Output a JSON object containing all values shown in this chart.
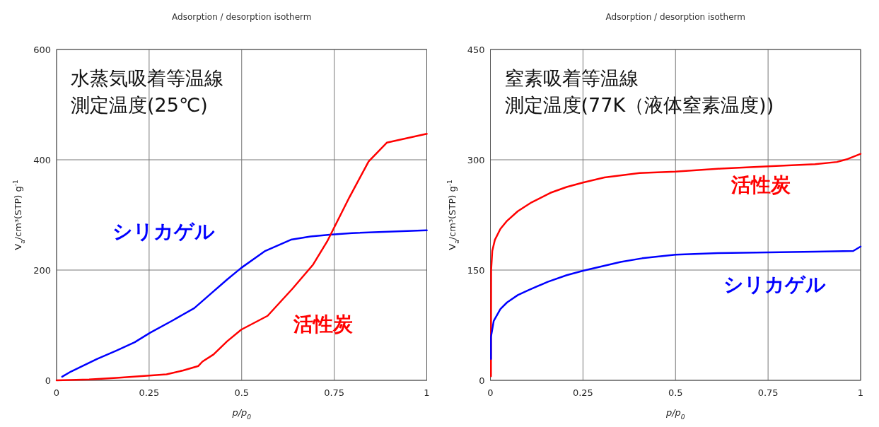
{
  "chart_data": [
    {
      "type": "line",
      "title": "Adsorption / desorption isotherm",
      "xlabel": "p/p$_{0}$",
      "ylabel": "V$_{a}$/cm³(STP) g$^{-1}$",
      "annotations": [
        "水蒸気吸着等温線",
        "測定温度(25℃)"
      ],
      "xlim": [
        0,
        1
      ],
      "xticks": [
        0,
        0.25,
        0.5,
        0.75,
        1
      ],
      "ylim": [
        0,
        600
      ],
      "yticks": [
        0,
        200,
        400,
        600
      ],
      "grid": true,
      "series": [
        {
          "name": "シリカゲル",
          "color": "#0000ff",
          "x": [
            0.015,
            0.039,
            0.11,
            0.162,
            0.211,
            0.252,
            0.312,
            0.372,
            0.413,
            0.461,
            0.499,
            0.562,
            0.633,
            0.686,
            0.738,
            0.798,
            1
          ],
          "values": [
            6.5,
            16,
            39,
            54,
            69,
            86,
            108,
            131,
            155,
            183,
            204,
            234,
            255,
            261,
            264,
            267,
            272
          ]
        },
        {
          "name": "活性炭",
          "color": "#ff0000",
          "x": [
            0,
            0.088,
            0.162,
            0.237,
            0.297,
            0.342,
            0.383,
            0.394,
            0.424,
            0.461,
            0.499,
            0.57,
            0.637,
            0.693,
            0.731,
            0.761,
            0.791,
            0.843,
            0.892,
            1
          ],
          "values": [
            0,
            1.5,
            4.5,
            8,
            11,
            18,
            26,
            34,
            47,
            71,
            92,
            117,
            166,
            210,
            252,
            292,
            332,
            397,
            431,
            447
          ]
        }
      ]
    },
    {
      "type": "line",
      "title": "Adsorption / desorption isotherm",
      "xlabel": "p/p$_{0}$",
      "ylabel": "V$_{a}$/cm³(STP) g$^{-1}$",
      "annotations": [
        "窒素吸着等温線",
        "測定温度(77K（液体窒素温度))"
      ],
      "xlim": [
        0,
        1
      ],
      "xticks": [
        0,
        0.25,
        0.5,
        0.75,
        1
      ],
      "ylim": [
        0,
        450
      ],
      "yticks": [
        0,
        150,
        300,
        450
      ],
      "grid": true,
      "series": [
        {
          "name": "活性炭",
          "color": "#ff0000",
          "x": [
            0.0015,
            0.0015,
            0.002,
            0.005,
            0.012,
            0.027,
            0.045,
            0.074,
            0.111,
            0.162,
            0.206,
            0.25,
            0.308,
            0.403,
            0.5,
            0.622,
            0.751,
            0.877,
            0.936,
            0.965,
            1
          ],
          "values": [
            5.5,
            29,
            150,
            176,
            191,
            206,
            217,
            230,
            242,
            255,
            263,
            269,
            276,
            282,
            284,
            288,
            291,
            294,
            297,
            301,
            308
          ]
        },
        {
          "name": "シリカゲル",
          "color": "#0000ff",
          "x": [
            0.0015,
            0.0015,
            0.009,
            0.027,
            0.045,
            0.074,
            0.104,
            0.155,
            0.206,
            0.25,
            0.352,
            0.41,
            0.5,
            0.615,
            0.751,
            0.877,
            0.98,
            1
          ],
          "values": [
            29,
            59,
            81,
            97,
            106,
            116,
            123,
            134,
            143,
            149,
            161,
            166,
            171,
            173,
            174,
            175,
            176,
            182
          ]
        }
      ]
    }
  ]
}
